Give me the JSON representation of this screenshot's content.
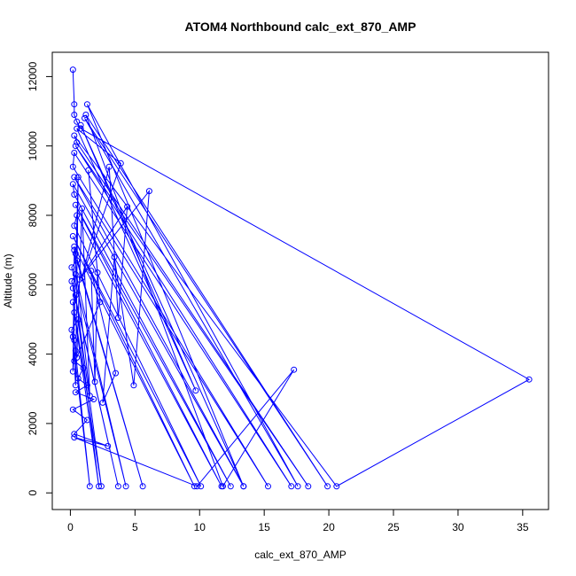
{
  "chart_data": {
    "type": "line",
    "title": "ATOM4 Northbound calc_ext_870_AMP",
    "xlabel": "calc_ext_870_AMP",
    "ylabel": "Altitude (m)",
    "xlim": [
      -1.4,
      37.0
    ],
    "ylim": [
      -480,
      12700
    ],
    "xticks": [
      0,
      5,
      10,
      15,
      20,
      25,
      30,
      35
    ],
    "yticks": [
      0,
      2000,
      4000,
      6000,
      8000,
      10000,
      12000
    ],
    "grid": false,
    "series_color": "#0000ff",
    "series": [
      {
        "style": "line+open-circle",
        "points": [
          [
            0.2,
            12200
          ],
          [
            0.3,
            11200
          ],
          [
            0.3,
            10900
          ],
          [
            0.5,
            10700
          ],
          [
            0.8,
            10500
          ],
          [
            35.5,
            3270
          ],
          [
            20.6,
            190
          ],
          [
            0.3,
            10300
          ],
          [
            0.5,
            10100
          ],
          [
            18.4,
            190
          ],
          [
            0.4,
            10000
          ],
          [
            17.1,
            190
          ],
          [
            0.3,
            9800
          ],
          [
            0.2,
            9400
          ],
          [
            15.3,
            190
          ],
          [
            0.3,
            9100
          ],
          [
            13.4,
            190
          ],
          [
            0.2,
            8900
          ],
          [
            0.3,
            8600
          ],
          [
            12.4,
            190
          ],
          [
            0.4,
            8300
          ],
          [
            11.7,
            190
          ],
          [
            0.5,
            8000
          ],
          [
            0.3,
            7700
          ],
          [
            10.1,
            190
          ],
          [
            0.2,
            7400
          ],
          [
            9.6,
            190
          ],
          [
            0.3,
            7100
          ],
          [
            0.4,
            6900
          ],
          [
            5.6,
            190
          ],
          [
            0.5,
            6700
          ],
          [
            0.1,
            6500
          ],
          [
            4.3,
            190
          ],
          [
            0.4,
            6300
          ],
          [
            0.1,
            6100
          ],
          [
            3.7,
            190
          ],
          [
            0.2,
            5900
          ],
          [
            0.4,
            5700
          ],
          [
            2.4,
            190
          ],
          [
            0.2,
            5500
          ],
          [
            0.3,
            5200
          ],
          [
            2.2,
            190
          ],
          [
            0.6,
            5000
          ],
          [
            0.1,
            4700
          ],
          [
            1.5,
            190
          ],
          [
            0.3,
            4400
          ],
          [
            0.4,
            4100
          ],
          [
            0.3,
            3800
          ],
          [
            1.0,
            3600
          ],
          [
            0.6,
            3300
          ],
          [
            1.3,
            3100
          ],
          [
            0.4,
            2900
          ],
          [
            1.8,
            2700
          ],
          [
            0.2,
            2400
          ],
          [
            1.3,
            2100
          ],
          [
            0.3,
            1700
          ],
          [
            2.9,
            1350
          ],
          [
            0.3,
            1600
          ],
          [
            9.8,
            190
          ],
          [
            17.3,
            3550
          ],
          [
            11.8,
            190
          ],
          [
            1.2,
            10900
          ],
          [
            19.9,
            190
          ],
          [
            1.1,
            10800
          ],
          [
            17.6,
            190
          ],
          [
            1.3,
            11200
          ],
          [
            13.4,
            190
          ],
          [
            0.8,
            10600
          ],
          [
            9.7,
            2950
          ],
          [
            0.5,
            10500
          ],
          [
            3.9,
            9500
          ],
          [
            0.9,
            6200
          ],
          [
            3.0,
            9400
          ],
          [
            3.7,
            5050
          ],
          [
            4.4,
            8250
          ],
          [
            0.7,
            6150
          ],
          [
            6.1,
            8700
          ],
          [
            4.9,
            3100
          ],
          [
            3.4,
            6800
          ],
          [
            2.5,
            2600
          ],
          [
            3.5,
            3450
          ],
          [
            1.6,
            6400
          ],
          [
            1.9,
            3200
          ],
          [
            2.1,
            6350
          ],
          [
            1.4,
            9300
          ],
          [
            2.3,
            5500
          ],
          [
            0.5,
            3900
          ],
          [
            0.9,
            8200
          ],
          [
            1.5,
            2800
          ],
          [
            0.3,
            7000
          ],
          [
            0.2,
            3500
          ],
          [
            0.6,
            9100
          ],
          [
            0.4,
            3100
          ],
          [
            0.2,
            4500
          ]
        ]
      }
    ]
  }
}
